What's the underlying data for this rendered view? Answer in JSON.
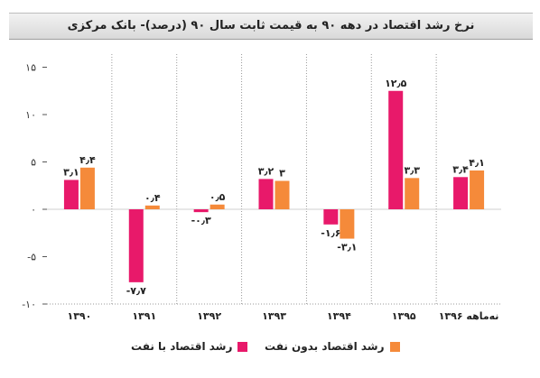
{
  "chart_data": {
    "type": "bar",
    "title": "نرخ رشد اقتصاد در دهه ۹۰ به قیمت ثابت سال ۹۰ (درصد)- بانک مرکزی",
    "categories": [
      "۱۳۹۰",
      "۱۳۹۱",
      "۱۳۹۲",
      "۱۳۹۳",
      "۱۳۹۴",
      "۱۳۹۵",
      "نه‌ماهه ۱۳۹۶"
    ],
    "series": [
      {
        "name": "رشد اقتصاد با نفت",
        "color": "#e8196a",
        "values": [
          3.1,
          -7.7,
          -0.3,
          3.2,
          -1.6,
          12.5,
          3.4
        ],
        "labels": [
          "۳٫۱",
          "-۷٫۷",
          "-۰٫۳",
          "۳٫۲",
          "-۱٫۶",
          "۱۲٫۵",
          "۳٫۴"
        ]
      },
      {
        "name": "رشد اقتصاد بدون نفت",
        "color": "#f58a3a",
        "values": [
          4.4,
          0.4,
          0.5,
          3.0,
          -3.1,
          3.3,
          4.1
        ],
        "labels": [
          "۴٫۴",
          "۰٫۴",
          "۰٫۵",
          "۳",
          "-۳٫۱",
          "۳٫۳",
          "۴٫۱"
        ]
      }
    ],
    "yticks": [
      15,
      10,
      5,
      0,
      -5,
      -10
    ],
    "ytick_labels": [
      "۱۵",
      "۱۰",
      "۵",
      "۰",
      "-۵",
      "-۱۰"
    ],
    "ylim": [
      -10,
      15
    ],
    "grid": false,
    "legend": "bottom"
  }
}
